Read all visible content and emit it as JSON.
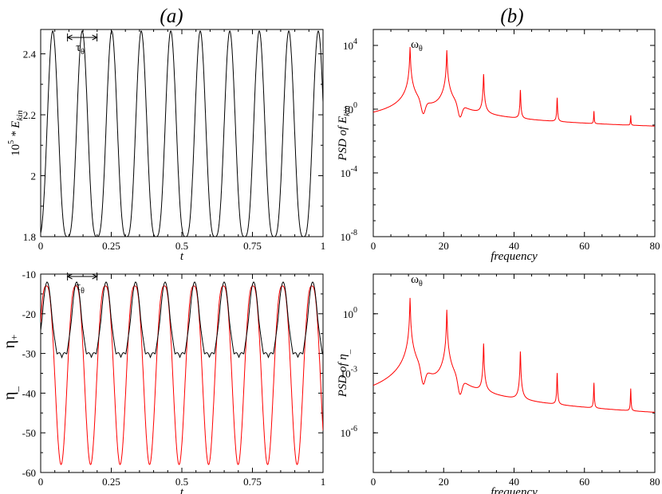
{
  "panel_titles": [
    "(a)",
    "(b)"
  ],
  "chart_data": [
    {
      "type": "line",
      "panel": "a-top",
      "xlabel": "t",
      "ylabel_prefix": "10",
      "ylabel_exp": "5",
      "ylabel_mid": " * E",
      "ylabel_sub": "kin",
      "xlim": [
        0,
        1
      ],
      "ylim": [
        1.8,
        2.48
      ],
      "xticks": [
        0,
        0.25,
        0.5,
        0.75,
        1
      ],
      "xtick_labels": [
        "0",
        "0.25",
        "0.5",
        "0.75",
        "1"
      ],
      "yticks": [
        1.8,
        2,
        2.2,
        2.4
      ],
      "ytick_labels": [
        "1.8",
        "2",
        "2.2",
        "2.4"
      ],
      "annotation": {
        "base": "τ",
        "sub": "θ"
      },
      "period": 0.1045,
      "series": [
        {
          "color": "#000000",
          "min": 1.8,
          "max": 2.475,
          "phase": 0.095
        }
      ]
    },
    {
      "type": "line",
      "panel": "a-bottom",
      "xlabel": "t",
      "ylabel_top": {
        "base": "η",
        "sub": "+",
        "color": "#ff0000"
      },
      "ylabel_bottom": {
        "base": "η",
        "sub": "_",
        "color": "#000000"
      },
      "xlim": [
        0,
        1
      ],
      "ylim": [
        -60,
        -10
      ],
      "xticks": [
        0,
        0.25,
        0.5,
        0.75,
        1
      ],
      "xtick_labels": [
        "0",
        "0.25",
        "0.5",
        "0.75",
        "1"
      ],
      "yticks": [
        -60,
        -50,
        -40,
        -30,
        -20,
        -10
      ],
      "ytick_labels": [
        "-60",
        "-50",
        "-40",
        "-30",
        "-20",
        "-10"
      ],
      "annotation": {
        "base": "τ",
        "sub": "θ"
      },
      "period": 0.1045,
      "series": [
        {
          "color": "#ff0000",
          "min": -58,
          "max": -13,
          "phase": 0.02
        },
        {
          "color": "#000000",
          "min": -31,
          "max": -12,
          "phase": 0.075
        }
      ]
    },
    {
      "type": "line",
      "panel": "b-top",
      "xlabel": "frequency",
      "ylabel": "PSD of E",
      "ylabel_sub": "kin",
      "log_y": true,
      "xlim": [
        0,
        80
      ],
      "ylim_exp": [
        -8,
        5
      ],
      "xticks": [
        0,
        20,
        40,
        60,
        80
      ],
      "xtick_labels": [
        "0",
        "20",
        "40",
        "60",
        "80"
      ],
      "yticks_exp": [
        -8,
        -4,
        0,
        4
      ],
      "ytick_base": "10",
      "ytick_exps": [
        "-8",
        "-4",
        "0",
        "4"
      ],
      "annotation": {
        "base": "ω",
        "sub": "θ"
      },
      "peak_frequencies": [
        10.45,
        20.9,
        31.35,
        41.8,
        52.25,
        62.7,
        73.15
      ],
      "peak_log_values": [
        3.9,
        3.7,
        2.2,
        1.2,
        0.7,
        -0.2,
        -0.5
      ],
      "series": [
        {
          "color": "#ff0000"
        }
      ]
    },
    {
      "type": "line",
      "panel": "b-bottom",
      "xlabel": "frequency",
      "ylabel": "PSD of η",
      "ylabel_sub": "_",
      "log_y": true,
      "xlim": [
        0,
        80
      ],
      "ylim_exp": [
        -8,
        2
      ],
      "xticks": [
        0,
        20,
        40,
        60,
        80
      ],
      "xtick_labels": [
        "0",
        "20",
        "40",
        "60",
        "80"
      ],
      "yticks_exp": [
        -6,
        -3,
        0
      ],
      "ytick_base": "10",
      "ytick_exps": [
        "-6",
        "-3",
        "0"
      ],
      "annotation": {
        "base": "ω",
        "sub": "θ"
      },
      "peak_frequencies": [
        10.45,
        20.9,
        31.35,
        41.8,
        52.25,
        62.7,
        73.15
      ],
      "peak_log_values": [
        0.8,
        0.2,
        -1.5,
        -1.9,
        -3.0,
        -3.5,
        -3.8
      ],
      "series": [
        {
          "color": "#ff0000"
        }
      ]
    }
  ]
}
